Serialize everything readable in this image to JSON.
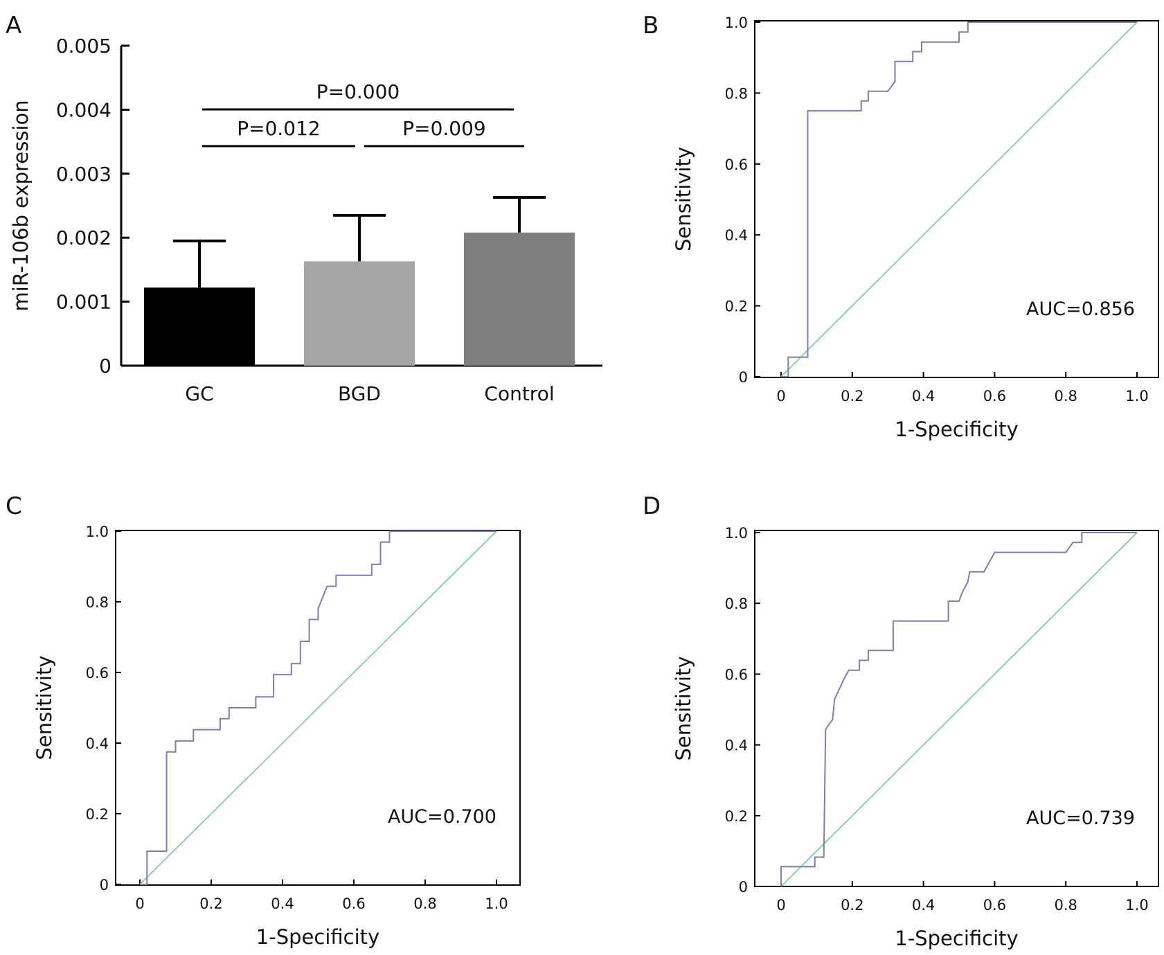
{
  "panels": {
    "a": {
      "label": "A"
    },
    "b": {
      "label": "B"
    },
    "c": {
      "label": "C"
    },
    "d": {
      "label": "D"
    }
  },
  "chart_data": [
    {
      "type": "bar",
      "panel": "A",
      "categories": [
        "GC",
        "BGD",
        "Control"
      ],
      "values": [
        0.00122,
        0.00163,
        0.00208
      ],
      "error_upper": [
        0.00195,
        0.00235,
        0.00263
      ],
      "ylabel": "miR-106b expression",
      "ylim": [
        0,
        0.005
      ],
      "yticks": [
        "0",
        "0.001",
        "0.002",
        "0.003",
        "0.004",
        "0.005"
      ],
      "colors": [
        "#000000",
        "#a6a6a8",
        "#7f7f7f"
      ],
      "comparisons": [
        {
          "from": 0,
          "to": 2,
          "label": "P=0.000"
        },
        {
          "from": 0,
          "to": 1,
          "label": "P=0.012"
        },
        {
          "from": 1,
          "to": 2,
          "label": "P=0.009"
        }
      ]
    },
    {
      "type": "line",
      "panel": "B",
      "xlabel": "1-Specificity",
      "ylabel": "Sensitivity",
      "xlim": [
        0,
        1
      ],
      "ylim": [
        0,
        1
      ],
      "xticks": [
        "0",
        "0.2",
        "0.4",
        "0.6",
        "0.8",
        "1.0"
      ],
      "yticks": [
        "0",
        "0.2",
        "0.4",
        "0.6",
        "0.8",
        "1.0"
      ],
      "annotation": "AUC=0.856",
      "roc_color": "#7b7fb5",
      "ref_color": "#8fd0a8",
      "roc": [
        [
          0,
          0
        ],
        [
          0.02,
          0
        ],
        [
          0.02,
          0.055
        ],
        [
          0.075,
          0.055
        ],
        [
          0.075,
          0.75
        ],
        [
          0.225,
          0.75
        ],
        [
          0.225,
          0.778
        ],
        [
          0.245,
          0.778
        ],
        [
          0.245,
          0.805
        ],
        [
          0.265,
          0.805
        ],
        [
          0.265,
          0.805
        ],
        [
          0.3,
          0.805
        ],
        [
          0.32,
          0.833
        ],
        [
          0.32,
          0.889
        ],
        [
          0.37,
          0.889
        ],
        [
          0.37,
          0.917
        ],
        [
          0.395,
          0.917
        ],
        [
          0.395,
          0.944
        ],
        [
          0.5,
          0.944
        ],
        [
          0.5,
          0.972
        ],
        [
          0.525,
          0.972
        ],
        [
          0.525,
          1
        ],
        [
          1,
          1
        ]
      ]
    },
    {
      "type": "line",
      "panel": "C",
      "xlabel": "1-Specificity",
      "ylabel": "Sensitivity",
      "xlim": [
        0,
        1
      ],
      "ylim": [
        0,
        1
      ],
      "xticks": [
        "0",
        "0.2",
        "0.4",
        "0.6",
        "0.8",
        "1.0"
      ],
      "yticks": [
        "0",
        "0.2",
        "0.4",
        "0.6",
        "0.8",
        "1.0"
      ],
      "annotation": "AUC=0.700",
      "roc_color": "#7b7fb5",
      "ref_color": "#8fd0a8",
      "roc": [
        [
          0,
          0
        ],
        [
          0.02,
          0
        ],
        [
          0.02,
          0.094
        ],
        [
          0.075,
          0.094
        ],
        [
          0.075,
          0.375
        ],
        [
          0.1,
          0.375
        ],
        [
          0.1,
          0.406
        ],
        [
          0.15,
          0.406
        ],
        [
          0.15,
          0.438
        ],
        [
          0.225,
          0.438
        ],
        [
          0.225,
          0.469
        ],
        [
          0.25,
          0.469
        ],
        [
          0.25,
          0.5
        ],
        [
          0.325,
          0.5
        ],
        [
          0.325,
          0.531
        ],
        [
          0.375,
          0.531
        ],
        [
          0.375,
          0.594
        ],
        [
          0.425,
          0.594
        ],
        [
          0.425,
          0.625
        ],
        [
          0.45,
          0.625
        ],
        [
          0.45,
          0.688
        ],
        [
          0.475,
          0.688
        ],
        [
          0.475,
          0.75
        ],
        [
          0.5,
          0.75
        ],
        [
          0.5,
          0.781
        ],
        [
          0.525,
          0.844
        ],
        [
          0.55,
          0.844
        ],
        [
          0.55,
          0.875
        ],
        [
          0.65,
          0.875
        ],
        [
          0.65,
          0.906
        ],
        [
          0.675,
          0.906
        ],
        [
          0.675,
          0.969
        ],
        [
          0.7,
          0.969
        ],
        [
          0.7,
          1
        ],
        [
          1,
          1
        ]
      ]
    },
    {
      "type": "line",
      "panel": "D",
      "xlabel": "1-Specificity",
      "ylabel": "Sensitivity",
      "xlim": [
        0,
        1
      ],
      "ylim": [
        0,
        1
      ],
      "xticks": [
        "0",
        "0.2",
        "0.4",
        "0.6",
        "0.8",
        "1.0"
      ],
      "yticks": [
        "0",
        "0.2",
        "0.4",
        "0.6",
        "0.8",
        "1.0"
      ],
      "annotation": "AUC=0.739",
      "roc_color": "#7b7fb5",
      "ref_color": "#8fd0a8",
      "roc": [
        [
          0,
          0
        ],
        [
          0,
          0.056
        ],
        [
          0.095,
          0.056
        ],
        [
          0.095,
          0.083
        ],
        [
          0.12,
          0.083
        ],
        [
          0.125,
          0.444
        ],
        [
          0.145,
          0.472
        ],
        [
          0.15,
          0.528
        ],
        [
          0.175,
          0.583
        ],
        [
          0.19,
          0.611
        ],
        [
          0.22,
          0.611
        ],
        [
          0.22,
          0.639
        ],
        [
          0.245,
          0.639
        ],
        [
          0.245,
          0.667
        ],
        [
          0.315,
          0.667
        ],
        [
          0.315,
          0.75
        ],
        [
          0.47,
          0.75
        ],
        [
          0.47,
          0.806
        ],
        [
          0.5,
          0.806
        ],
        [
          0.51,
          0.833
        ],
        [
          0.525,
          0.861
        ],
        [
          0.53,
          0.889
        ],
        [
          0.57,
          0.889
        ],
        [
          0.6,
          0.944
        ],
        [
          0.8,
          0.944
        ],
        [
          0.82,
          0.972
        ],
        [
          0.845,
          0.972
        ],
        [
          0.845,
          1
        ],
        [
          1,
          1
        ]
      ]
    }
  ]
}
